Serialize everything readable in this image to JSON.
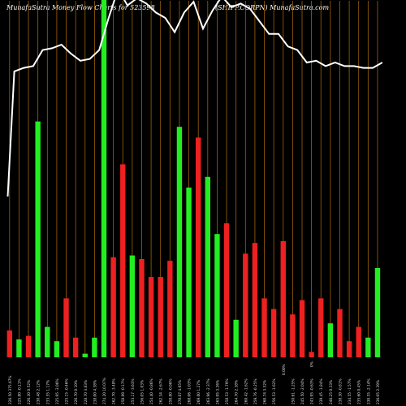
{
  "header": {
    "left": "MunafaSutra  Money Flow  Charts for 523598",
    "right": "(SHIPP.CORPN) MunafaSutra.com"
  },
  "colors": {
    "background": "#000000",
    "grid": "#a0620a",
    "positive": "#22ee22",
    "negative": "#ee2020",
    "line": "#ffffff",
    "label": "#dddddd"
  },
  "chart_data": {
    "type": "bar",
    "xlim": [
      0,
      42
    ],
    "ylim": [
      0,
      100
    ],
    "grid": "vertical",
    "bars": [
      {
        "x": 0.5,
        "value": 7.5,
        "dir": "negative"
      },
      {
        "x": 1.5,
        "value": 5.0,
        "dir": "positive"
      },
      {
        "x": 2.5,
        "value": 6.0,
        "dir": "negative"
      },
      {
        "x": 3.5,
        "value": 66.0,
        "dir": "positive"
      },
      {
        "x": 4.5,
        "value": 8.5,
        "dir": "positive"
      },
      {
        "x": 5.5,
        "value": 4.5,
        "dir": "positive"
      },
      {
        "x": 6.5,
        "value": 16.5,
        "dir": "negative"
      },
      {
        "x": 7.5,
        "value": 5.5,
        "dir": "negative"
      },
      {
        "x": 8.5,
        "value": 1.0,
        "dir": "positive"
      },
      {
        "x": 9.5,
        "value": 5.5,
        "dir": "positive"
      },
      {
        "x": 10.5,
        "value": 100,
        "dir": "positive"
      },
      {
        "x": 11.5,
        "value": 28.0,
        "dir": "negative"
      },
      {
        "x": 12.5,
        "value": 54.0,
        "dir": "negative"
      },
      {
        "x": 13.5,
        "value": 28.5,
        "dir": "positive"
      },
      {
        "x": 14.5,
        "value": 27.5,
        "dir": "negative"
      },
      {
        "x": 15.5,
        "value": 22.5,
        "dir": "negative"
      },
      {
        "x": 16.5,
        "value": 22.5,
        "dir": "negative"
      },
      {
        "x": 17.5,
        "value": 27.0,
        "dir": "negative"
      },
      {
        "x": 18.5,
        "value": 64.5,
        "dir": "positive"
      },
      {
        "x": 19.5,
        "value": 47.5,
        "dir": "positive"
      },
      {
        "x": 20.5,
        "value": 61.5,
        "dir": "negative"
      },
      {
        "x": 21.5,
        "value": 50.5,
        "dir": "positive"
      },
      {
        "x": 22.5,
        "value": 34.5,
        "dir": "positive"
      },
      {
        "x": 23.5,
        "value": 37.5,
        "dir": "negative"
      },
      {
        "x": 24.5,
        "value": 10.5,
        "dir": "positive"
      },
      {
        "x": 25.5,
        "value": 29.0,
        "dir": "negative"
      },
      {
        "x": 26.5,
        "value": 32.0,
        "dir": "negative"
      },
      {
        "x": 27.5,
        "value": 16.5,
        "dir": "negative"
      },
      {
        "x": 28.5,
        "value": 13.5,
        "dir": "negative"
      },
      {
        "x": 29.5,
        "value": 32.5,
        "dir": "negative"
      },
      {
        "x": 30.5,
        "value": 12.0,
        "dir": "negative"
      },
      {
        "x": 31.5,
        "value": 16.0,
        "dir": "negative"
      },
      {
        "x": 32.5,
        "value": 1.5,
        "dir": "negative"
      },
      {
        "x": 33.5,
        "value": 16.5,
        "dir": "negative"
      },
      {
        "x": 34.5,
        "value": 9.5,
        "dir": "positive"
      },
      {
        "x": 35.5,
        "value": 13.5,
        "dir": "negative"
      },
      {
        "x": 36.5,
        "value": 4.5,
        "dir": "negative"
      },
      {
        "x": 37.5,
        "value": 8.5,
        "dir": "negative"
      },
      {
        "x": 38.5,
        "value": 5.5,
        "dir": "positive"
      },
      {
        "x": 39.5,
        "value": 25.0,
        "dir": "positive"
      }
    ],
    "line": {
      "x": [
        0.3,
        1,
        2,
        3,
        4,
        5,
        6,
        7,
        8,
        9,
        10,
        11,
        12,
        13,
        14,
        15,
        16,
        17,
        18,
        19,
        20,
        21,
        22,
        23,
        24,
        25,
        26,
        27,
        28,
        29,
        30,
        31,
        32,
        33,
        34,
        35,
        36,
        37,
        38,
        39,
        40
      ],
      "y": [
        45,
        80,
        81,
        81.5,
        86,
        86.5,
        87.5,
        85,
        83,
        83.5,
        86,
        95,
        103,
        98.5,
        100.5,
        99,
        96.5,
        95,
        91,
        96.5,
        99.5,
        92,
        97,
        101,
        98,
        99,
        97.5,
        94,
        90.5,
        90.5,
        87,
        86,
        82.5,
        83,
        81.5,
        82.5,
        81.5,
        81.5,
        81,
        81,
        82.5
      ]
    },
    "tick_labels": [
      "226.50 375.67%",
      "225.80 -0.11%",
      "226.30 0.52%",
      "230.48 2.12%",
      "233.55 1.17%",
      "225.95 -3.06%",
      "225.15 -0.46%",
      "226.70 0.10%",
      "228.70 3.83%",
      "238.00 4.38%",
      "274.20 10.07%",
      "262.70 -3.48%",
      "258.09 -0.17%",
      "253.17 -3.63%",
      "256.05 1.03%",
      "254.40 -0.86%",
      "262.34 -2.67%",
      "258.80 -0.06%",
      "270.87 4.65%",
      "268.06 -1.03%",
      "269.00 1.27%",
      "263.96 -2.37%",
      "265.95 3.26%",
      "258.53 -1.79%",
      "264.70 2.38%",
      "260.42 -1.62%",
      "259.76 -0.25%",
      "260.74 3.52%",
      "256.53 -1.62%",
      "",
      "250.61 -1.25%",
      "245.50 -2.04%",
      "243.95 -0.63%",
      "239.45 -1.84%",
      "240.25 0.33%",
      "238.30 -0.81%",
      "234.55 -1.57%",
      "235.60 0.45%",
      "230.55 -2.14%",
      "236.05 2.39%"
    ],
    "inline_labels": [
      "0.00%",
      "0%"
    ]
  }
}
